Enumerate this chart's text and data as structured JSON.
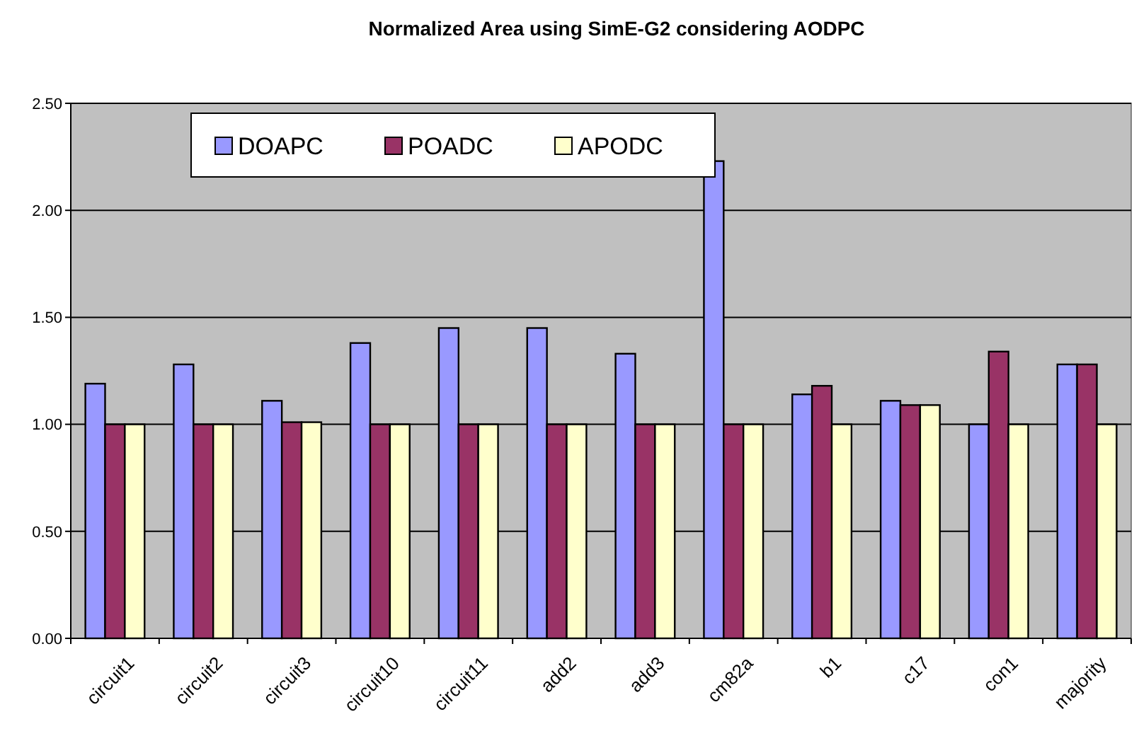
{
  "chart_data": {
    "type": "bar",
    "title": "Normalized Area using SimE-G2 considering AODPC",
    "categories": [
      "circuit1",
      "circuit2",
      "circuit3",
      "circuit10",
      "circuit11",
      "add2",
      "add3",
      "cm82a",
      "b1",
      "c17",
      "con1",
      "majority"
    ],
    "series": [
      {
        "name": "DOAPC",
        "color": "#9999ff",
        "values": [
          1.19,
          1.28,
          1.11,
          1.38,
          1.45,
          1.45,
          1.33,
          2.23,
          1.14,
          1.11,
          1.0,
          1.28
        ]
      },
      {
        "name": "POADC",
        "color": "#993366",
        "values": [
          1.0,
          1.0,
          1.01,
          1.0,
          1.0,
          1.0,
          1.0,
          1.0,
          1.18,
          1.09,
          1.34,
          1.28
        ]
      },
      {
        "name": "APODC",
        "color": "#ffffcc",
        "values": [
          1.0,
          1.0,
          1.01,
          1.0,
          1.0,
          1.0,
          1.0,
          1.0,
          1.0,
          1.09,
          1.0,
          1.0
        ]
      }
    ],
    "ylim": [
      0,
      2.5
    ],
    "yticks": [
      {
        "value": 0,
        "label": "0.00"
      },
      {
        "value": 0.5,
        "label": "0.50"
      },
      {
        "value": 1,
        "label": "1.00"
      },
      {
        "value": 1.5,
        "label": "1.50"
      },
      {
        "value": 2,
        "label": "2.00"
      },
      {
        "value": 2.5,
        "label": "2.50"
      }
    ],
    "grid": "y",
    "legend": "top"
  }
}
